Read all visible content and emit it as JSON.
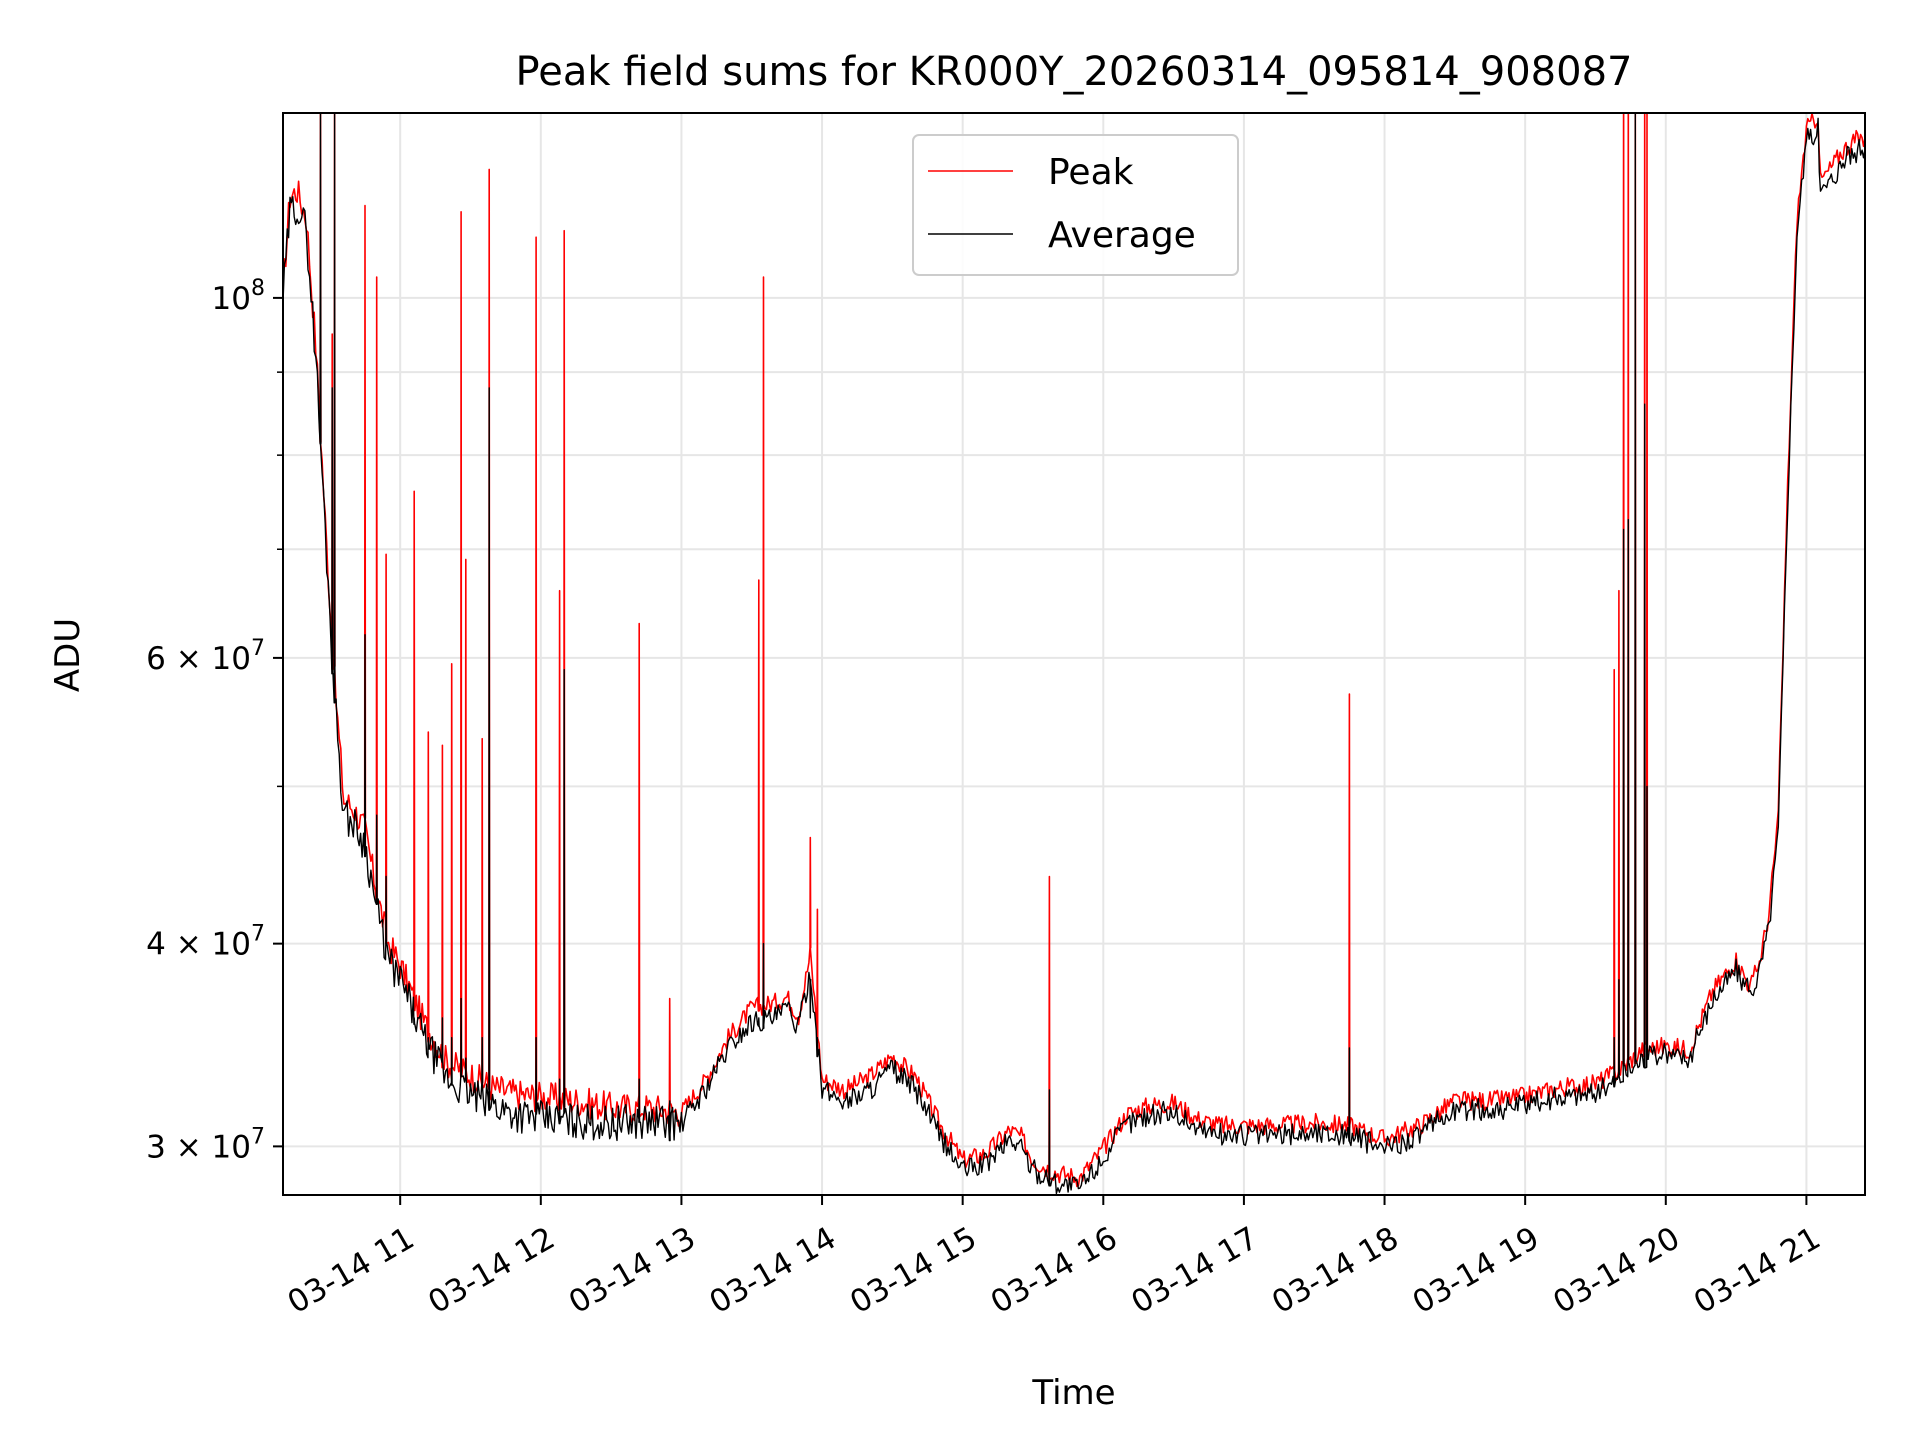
{
  "chart_data": {
    "type": "line",
    "title": "Peak field sums for KR000Y_20260314_095814_908087",
    "xlabel": "Time",
    "ylabel": "ADU",
    "y_scale": "log",
    "ylim": [
      28000000,
      130000000
    ],
    "xlim": [
      "2026-03-14T10:10",
      "2026-03-14T21:25"
    ],
    "x_ticks": [
      {
        "x": "2026-03-14T11:00",
        "label": "03-14 11"
      },
      {
        "x": "2026-03-14T12:00",
        "label": "03-14 12"
      },
      {
        "x": "2026-03-14T13:00",
        "label": "03-14 13"
      },
      {
        "x": "2026-03-14T14:00",
        "label": "03-14 14"
      },
      {
        "x": "2026-03-14T15:00",
        "label": "03-14 15"
      },
      {
        "x": "2026-03-14T16:00",
        "label": "03-14 16"
      },
      {
        "x": "2026-03-14T17:00",
        "label": "03-14 17"
      },
      {
        "x": "2026-03-14T18:00",
        "label": "03-14 18"
      },
      {
        "x": "2026-03-14T19:00",
        "label": "03-14 19"
      },
      {
        "x": "2026-03-14T20:00",
        "label": "03-14 20"
      },
      {
        "x": "2026-03-14T21:00",
        "label": "03-14 21"
      }
    ],
    "y_major_ticks": [
      {
        "y": 30000000,
        "base": "3 × 10",
        "exp": "7"
      },
      {
        "y": 40000000,
        "base": "4 × 10",
        "exp": "7"
      },
      {
        "y": 60000000,
        "base": "6 × 10",
        "exp": "7"
      },
      {
        "y": 100000000,
        "base": "10",
        "exp": "8"
      }
    ],
    "y_minor_ticks": [
      50000000,
      70000000,
      80000000,
      90000000
    ],
    "grid": true,
    "legend_placement": "top-center",
    "baseline": {
      "x": [
        "2026-03-14T10:10",
        "2026-03-14T10:13",
        "2026-03-14T10:16",
        "2026-03-14T10:20",
        "2026-03-14T10:24",
        "2026-03-14T10:28",
        "2026-03-14T10:32",
        "2026-03-14T10:36",
        "2026-03-14T10:40",
        "2026-03-14T10:45",
        "2026-03-14T10:50",
        "2026-03-14T10:55",
        "2026-03-14T11:00",
        "2026-03-14T11:10",
        "2026-03-14T11:20",
        "2026-03-14T11:30",
        "2026-03-14T11:40",
        "2026-03-14T11:50",
        "2026-03-14T12:00",
        "2026-03-14T12:15",
        "2026-03-14T12:30",
        "2026-03-14T12:45",
        "2026-03-14T13:00",
        "2026-03-14T13:10",
        "2026-03-14T13:20",
        "2026-03-14T13:30",
        "2026-03-14T13:40",
        "2026-03-14T13:45",
        "2026-03-14T13:50",
        "2026-03-14T13:55",
        "2026-03-14T14:00",
        "2026-03-14T14:10",
        "2026-03-14T14:20",
        "2026-03-14T14:30",
        "2026-03-14T14:40",
        "2026-03-14T14:50",
        "2026-03-14T15:00",
        "2026-03-14T15:10",
        "2026-03-14T15:20",
        "2026-03-14T15:25",
        "2026-03-14T15:30",
        "2026-03-14T15:40",
        "2026-03-14T15:50",
        "2026-03-14T16:00",
        "2026-03-14T16:10",
        "2026-03-14T16:20",
        "2026-03-14T16:30",
        "2026-03-14T16:40",
        "2026-03-14T16:50",
        "2026-03-14T17:00",
        "2026-03-14T17:15",
        "2026-03-14T17:30",
        "2026-03-14T17:45",
        "2026-03-14T18:00",
        "2026-03-14T18:15",
        "2026-03-14T18:30",
        "2026-03-14T18:45",
        "2026-03-14T19:00",
        "2026-03-14T19:15",
        "2026-03-14T19:30",
        "2026-03-14T19:40",
        "2026-03-14T19:50",
        "2026-03-14T20:00",
        "2026-03-14T20:10",
        "2026-03-14T20:20",
        "2026-03-14T20:30",
        "2026-03-14T20:36",
        "2026-03-14T20:40",
        "2026-03-14T20:44",
        "2026-03-14T20:48",
        "2026-03-14T20:52",
        "2026-03-14T20:56",
        "2026-03-14T21:00",
        "2026-03-14T21:03",
        "2026-03-14T21:05",
        "2026-03-14T21:06",
        "2026-03-14T21:10",
        "2026-03-14T21:15",
        "2026-03-14T21:20",
        "2026-03-14T21:25"
      ],
      "average": [
        100000000,
        113000000,
        114000000,
        110000000,
        92000000,
        72000000,
        57000000,
        48000000,
        47500000,
        46000000,
        42000000,
        39000000,
        38000000,
        35000000,
        33000000,
        32300000,
        31800000,
        31400000,
        31200000,
        31100000,
        31000000,
        31100000,
        31000000,
        32500000,
        34500000,
        35800000,
        36000000,
        36500000,
        35500000,
        38500000,
        32500000,
        32000000,
        32500000,
        33500000,
        32500000,
        30500000,
        29000000,
        29300000,
        30300000,
        30000000,
        29000000,
        28500000,
        28300000,
        29500000,
        31000000,
        31400000,
        31500000,
        30800000,
        30500000,
        30500000,
        30500000,
        30600000,
        30500000,
        29900000,
        30500000,
        31600000,
        31600000,
        31800000,
        32200000,
        32400000,
        33000000,
        34000000,
        34200000,
        34000000,
        37000000,
        38600000,
        37200000,
        38500000,
        41000000,
        47000000,
        75000000,
        110000000,
        125000000,
        126000000,
        127000000,
        116000000,
        118000000,
        121000000,
        123000000,
        123500000
      ],
      "peak": [
        101000000,
        115500000,
        116500000,
        112000000,
        93500000,
        73000000,
        58000000,
        49000000,
        48500000,
        47000000,
        43000000,
        40000000,
        38800000,
        35800000,
        33800000,
        33200000,
        32600000,
        32300000,
        32200000,
        32000000,
        31700000,
        31700000,
        31500000,
        32900000,
        35000000,
        36500000,
        36800000,
        37100000,
        36100000,
        39400000,
        33000000,
        32500000,
        33100000,
        34100000,
        33100000,
        31000000,
        29400000,
        29700000,
        30700000,
        30400000,
        29400000,
        28900000,
        28700000,
        29900000,
        31400000,
        31800000,
        31900000,
        31200000,
        30900000,
        30900000,
        30900000,
        31000000,
        30900000,
        30300000,
        30900000,
        32000000,
        32000000,
        32200000,
        32600000,
        32800000,
        33400000,
        34400000,
        34600000,
        34400000,
        37400000,
        39100000,
        37600000,
        39000000,
        41700000,
        48000000,
        76500000,
        112000000,
        127000000,
        128500000,
        129500000,
        118000000,
        120000000,
        123000000,
        125000000,
        125500000
      ]
    },
    "spikes": {
      "x": [
        "2026-03-14T10:26",
        "2026-03-14T10:31",
        "2026-03-14T10:32",
        "2026-03-14T10:45",
        "2026-03-14T10:50",
        "2026-03-14T10:54",
        "2026-03-14T11:06",
        "2026-03-14T11:12",
        "2026-03-14T11:18",
        "2026-03-14T11:22",
        "2026-03-14T11:26",
        "2026-03-14T11:28",
        "2026-03-14T11:35",
        "2026-03-14T11:38",
        "2026-03-14T11:58",
        "2026-03-14T12:08",
        "2026-03-14T12:10",
        "2026-03-14T12:42",
        "2026-03-14T12:55",
        "2026-03-14T13:33",
        "2026-03-14T13:35",
        "2026-03-14T13:55",
        "2026-03-14T13:58",
        "2026-03-14T15:37",
        "2026-03-14T17:45",
        "2026-03-14T19:38",
        "2026-03-14T19:40",
        "2026-03-14T19:42",
        "2026-03-14T19:44",
        "2026-03-14T19:47",
        "2026-03-14T19:51",
        "2026-03-14T19:52"
      ],
      "peak": [
        131000000,
        95000000,
        130000000,
        114000000,
        103000000,
        69500000,
        76000000,
        54000000,
        53000000,
        59500000,
        113000000,
        69000000,
        53500000,
        120000000,
        109000000,
        66000000,
        110000000,
        63000000,
        37000000,
        67000000,
        103000000,
        46500000,
        42000000,
        44000000,
        57000000,
        59000000,
        66000000,
        145000000,
        142000000,
        145000000,
        137000000,
        130000000
      ],
      "average": [
        131000000,
        88000000,
        130000000,
        62000000,
        48000000,
        44000000,
        36000000,
        35000000,
        36000000,
        35000000,
        37000000,
        34000000,
        35000000,
        88000000,
        35000000,
        33000000,
        59000000,
        33000000,
        32000000,
        36000000,
        40000000,
        36000000,
        35000000,
        32500000,
        34500000,
        35000000,
        38000000,
        72000000,
        73000000,
        130000000,
        86000000,
        50000000
      ]
    },
    "series": [
      {
        "name": "Peak",
        "color": "#ff0000"
      },
      {
        "name": "Average",
        "color": "#000000"
      }
    ]
  }
}
